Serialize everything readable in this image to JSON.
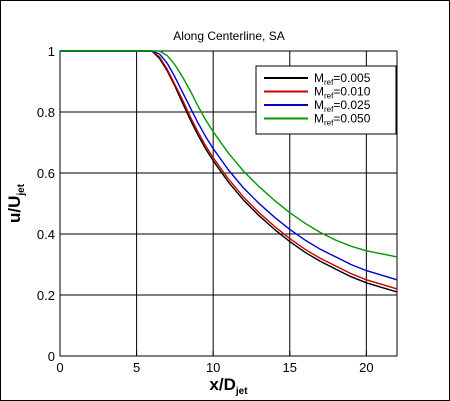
{
  "chart_data": {
    "type": "line",
    "title": "Along Centerline, SA",
    "xlabel": {
      "main": "x/D",
      "sub": "jet"
    },
    "ylabel": {
      "main": "u/U",
      "sub": "jet"
    },
    "xlim": [
      0,
      22
    ],
    "ylim": [
      0,
      1
    ],
    "xticks": [
      0,
      5,
      10,
      15,
      20
    ],
    "yticks": [
      0,
      0.2,
      0.4,
      0.6,
      0.8,
      1
    ],
    "xtick_labels": [
      "0",
      "5",
      "10",
      "15",
      "20"
    ],
    "ytick_labels": [
      "0",
      "0.2",
      "0.4",
      "0.6",
      "0.8",
      "1"
    ],
    "grid": true,
    "legend_position": "top-right",
    "series": [
      {
        "name": {
          "prefix": "M",
          "sub": "ref",
          "suffix": "=0.005"
        },
        "color": "#000000",
        "x": [
          0,
          6.0,
          6.5,
          7.0,
          7.5,
          8.0,
          8.5,
          9.0,
          9.5,
          10,
          11,
          12,
          13,
          14,
          15,
          16,
          17,
          18,
          19,
          20,
          21,
          22
        ],
        "y": [
          1.0,
          1.0,
          0.975,
          0.935,
          0.885,
          0.83,
          0.775,
          0.725,
          0.68,
          0.64,
          0.57,
          0.51,
          0.46,
          0.415,
          0.375,
          0.34,
          0.31,
          0.285,
          0.26,
          0.24,
          0.225,
          0.21
        ]
      },
      {
        "name": {
          "prefix": "M",
          "sub": "ref",
          "suffix": "=0.010"
        },
        "color": "#cc0000",
        "x": [
          0,
          6.0,
          6.5,
          7.0,
          7.5,
          8.0,
          8.5,
          9.0,
          9.5,
          10,
          11,
          12,
          13,
          14,
          15,
          16,
          17,
          18,
          19,
          20,
          21,
          22
        ],
        "y": [
          1.0,
          1.0,
          0.98,
          0.94,
          0.89,
          0.84,
          0.785,
          0.735,
          0.69,
          0.65,
          0.58,
          0.52,
          0.47,
          0.425,
          0.385,
          0.35,
          0.32,
          0.295,
          0.27,
          0.25,
          0.235,
          0.22
        ]
      },
      {
        "name": {
          "prefix": "M",
          "sub": "ref",
          "suffix": "=0.025"
        },
        "color": "#0000cc",
        "x": [
          0,
          6.0,
          6.5,
          7.0,
          7.5,
          8.0,
          8.5,
          9.0,
          9.5,
          10,
          11,
          12,
          13,
          14,
          15,
          16,
          17,
          18,
          19,
          20,
          21,
          22
        ],
        "y": [
          1.0,
          1.0,
          0.99,
          0.96,
          0.915,
          0.865,
          0.815,
          0.765,
          0.72,
          0.68,
          0.61,
          0.55,
          0.5,
          0.455,
          0.415,
          0.38,
          0.35,
          0.325,
          0.3,
          0.28,
          0.265,
          0.25
        ]
      },
      {
        "name": {
          "prefix": "M",
          "sub": "ref",
          "suffix": "=0.050"
        },
        "color": "#009900",
        "x": [
          0,
          6.5,
          7.0,
          7.5,
          8.0,
          8.5,
          9.0,
          9.5,
          10,
          11,
          12,
          13,
          14,
          15,
          16,
          17,
          18,
          19,
          20,
          21,
          22
        ],
        "y": [
          1.0,
          1.0,
          0.985,
          0.955,
          0.915,
          0.87,
          0.82,
          0.775,
          0.735,
          0.665,
          0.605,
          0.555,
          0.51,
          0.47,
          0.435,
          0.405,
          0.38,
          0.36,
          0.345,
          0.335,
          0.325
        ]
      }
    ]
  }
}
